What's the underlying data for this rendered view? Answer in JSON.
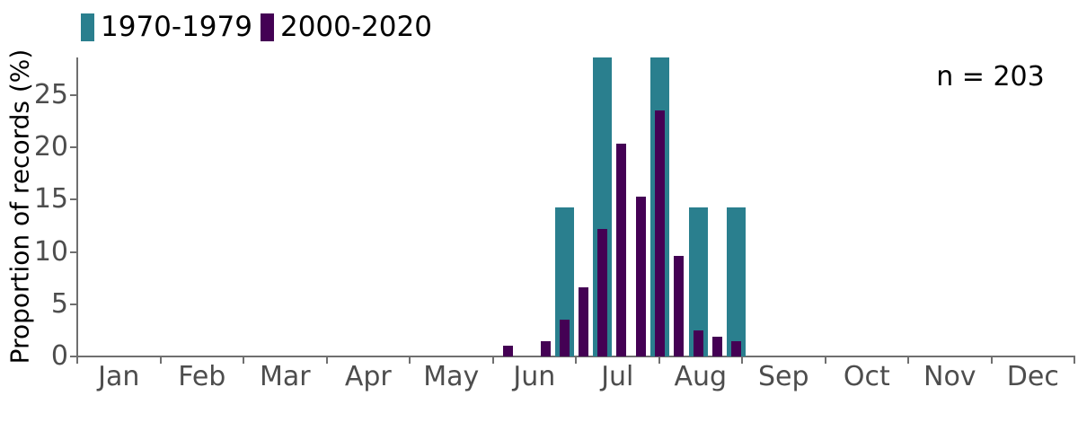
{
  "chart_data": {
    "type": "bar",
    "title": "",
    "xlabel": "",
    "ylabel": "Proportion of records (%)",
    "annotation": "n = 203",
    "ylim": [
      0,
      28.6
    ],
    "yticks": [
      0,
      5,
      10,
      15,
      20,
      25
    ],
    "x_months": [
      "Jan",
      "Feb",
      "Mar",
      "Apr",
      "May",
      "Jun",
      "Jul",
      "Aug",
      "Sep",
      "Oct",
      "Nov",
      "Dec"
    ],
    "x_range_months": [
      0,
      12
    ],
    "grid": false,
    "legend_position": "top-left",
    "bin_unit": "week",
    "bin_centers_month": [
      5.18,
      5.41,
      5.64,
      5.86,
      6.09,
      6.32,
      6.55,
      6.78,
      7.01,
      7.24,
      7.47,
      7.7,
      7.93
    ],
    "series": [
      {
        "name": "1970-1979",
        "color": "#2a7f8e",
        "bar_style": "wide",
        "values": [
          0,
          0,
          0,
          14.3,
          0,
          28.6,
          0,
          0,
          28.6,
          0,
          14.3,
          0,
          14.3
        ]
      },
      {
        "name": "2000-2020",
        "color": "#440154",
        "bar_style": "narrow",
        "values": [
          1.0,
          0,
          1.5,
          3.5,
          6.6,
          12.2,
          20.4,
          15.3,
          23.5,
          9.6,
          2.5,
          1.9,
          1.5
        ]
      }
    ]
  },
  "colors": {
    "axis": "#6f6f6f",
    "tick_label": "#4d4d4d",
    "text": "#000000",
    "background": "#ffffff"
  }
}
